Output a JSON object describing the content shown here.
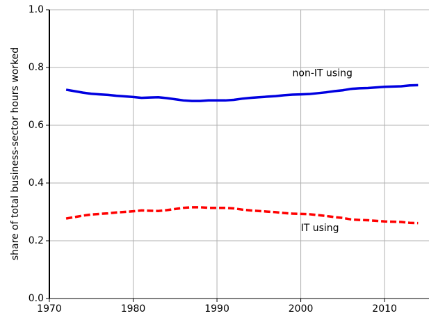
{
  "chart_data": {
    "type": "line",
    "ylabel": "share of total business-sector hours worked",
    "x": [
      1972,
      1973,
      1974,
      1975,
      1976,
      1977,
      1978,
      1979,
      1980,
      1981,
      1982,
      1983,
      1984,
      1985,
      1986,
      1987,
      1988,
      1989,
      1990,
      1991,
      1992,
      1993,
      1994,
      1995,
      1996,
      1997,
      1998,
      1999,
      2000,
      2001,
      2002,
      2003,
      2004,
      2005,
      2006,
      2007,
      2008,
      2009,
      2010,
      2011,
      2012,
      2013,
      2014
    ],
    "series": [
      {
        "name": "non-IT using",
        "color": "#0000e0",
        "dash": "solid",
        "values": [
          0.723,
          0.718,
          0.713,
          0.709,
          0.707,
          0.705,
          0.702,
          0.7,
          0.698,
          0.695,
          0.696,
          0.697,
          0.694,
          0.69,
          0.686,
          0.684,
          0.684,
          0.686,
          0.686,
          0.686,
          0.688,
          0.692,
          0.695,
          0.697,
          0.699,
          0.701,
          0.704,
          0.706,
          0.707,
          0.708,
          0.711,
          0.714,
          0.718,
          0.721,
          0.726,
          0.728,
          0.729,
          0.731,
          0.733,
          0.734,
          0.735,
          0.738,
          0.739
        ],
        "label_x": 1999,
        "label_y": 0.78
      },
      {
        "name": "IT using",
        "color": "#ff0000",
        "dash": "dashed",
        "values": [
          0.277,
          0.282,
          0.287,
          0.291,
          0.293,
          0.295,
          0.298,
          0.3,
          0.302,
          0.305,
          0.304,
          0.303,
          0.306,
          0.31,
          0.314,
          0.316,
          0.316,
          0.314,
          0.314,
          0.314,
          0.312,
          0.308,
          0.305,
          0.303,
          0.301,
          0.299,
          0.296,
          0.294,
          0.293,
          0.292,
          0.289,
          0.286,
          0.282,
          0.279,
          0.274,
          0.272,
          0.271,
          0.269,
          0.267,
          0.266,
          0.265,
          0.262,
          0.261
        ],
        "label_x": 2000,
        "label_y": 0.243
      }
    ],
    "xlim": [
      1970,
      2015.3
    ],
    "xticks": [
      1970,
      1980,
      1990,
      2000,
      2010
    ],
    "ylim": [
      0,
      1
    ],
    "yticks": [
      {
        "value": 0,
        "label": "0.0"
      },
      {
        "value": 0.2,
        "label": "0.2"
      },
      {
        "value": 0.4,
        "label": "0.4"
      },
      {
        "value": 0.6,
        "label": "0.6"
      },
      {
        "value": 0.8,
        "label": "0.8"
      },
      {
        "value": 1,
        "label": "1.0"
      }
    ],
    "grid": true
  }
}
